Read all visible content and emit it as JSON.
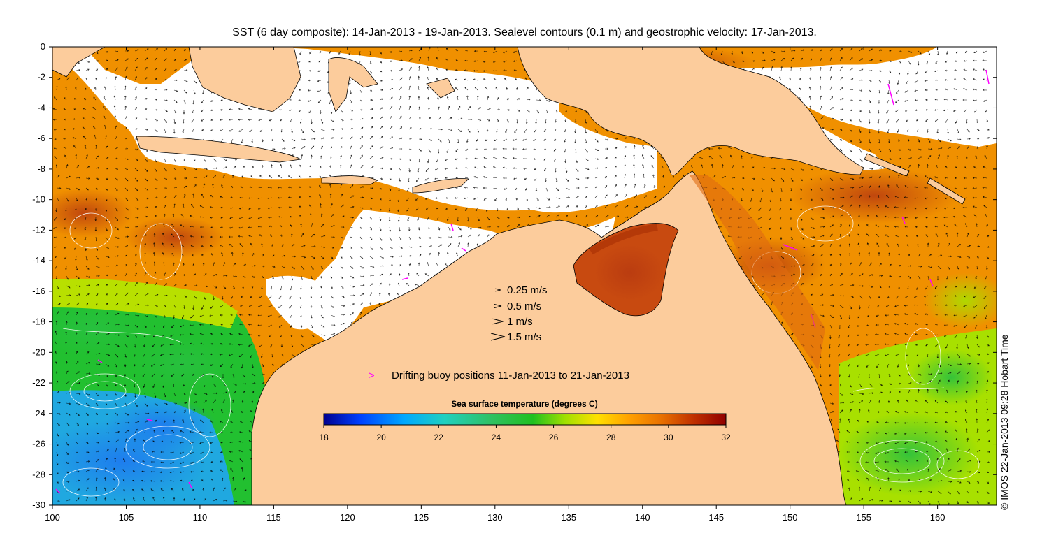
{
  "title": "SST (6 day composite): 14-Jan-2013 - 19-Jan-2013. Sealevel contours (0.1 m) and geostrophic velocity: 17-Jan-2013.",
  "credit": "© IMOS 22-Jan-2013 09:28 Hobart Time",
  "map": {
    "lon_range": [
      100,
      164
    ],
    "lat_range": [
      -30,
      0
    ],
    "x_ticks": [
      "100",
      "105",
      "110",
      "115",
      "120",
      "125",
      "130",
      "135",
      "140",
      "145",
      "150",
      "155",
      "160"
    ],
    "y_ticks": [
      "0",
      "-2",
      "-4",
      "-6",
      "-8",
      "-10",
      "-12",
      "-14",
      "-16",
      "-18",
      "-20",
      "-22",
      "-24",
      "-26",
      "-28",
      "-30"
    ],
    "land_color": "#fccc9c",
    "arrow_color": "#000000",
    "contour_color": "#ffffff",
    "buoy_color": "#ff00ff"
  },
  "velocity_legend": [
    {
      "speed": 0.25,
      "label": "0.25 m/s"
    },
    {
      "speed": 0.5,
      "label": "0.5 m/s"
    },
    {
      "speed": 1,
      "label": "1 m/s"
    },
    {
      "speed": 1.5,
      "label": "1.5 m/s"
    }
  ],
  "buoy_legend": {
    "marker": ">",
    "label": "Drifting buoy positions 11-Jan-2013 to 21-Jan-2013"
  },
  "colorbar": {
    "title": "Sea surface temperature (degrees C)",
    "range": [
      18,
      32
    ],
    "ticks": [
      "18",
      "20",
      "22",
      "24",
      "26",
      "28",
      "30",
      "32"
    ],
    "colors": [
      "#00008f",
      "#0040ff",
      "#00a8ff",
      "#20d0c0",
      "#30c060",
      "#20c020",
      "#a0e000",
      "#ffe000",
      "#ffa000",
      "#e87000",
      "#c03000",
      "#900000"
    ]
  }
}
